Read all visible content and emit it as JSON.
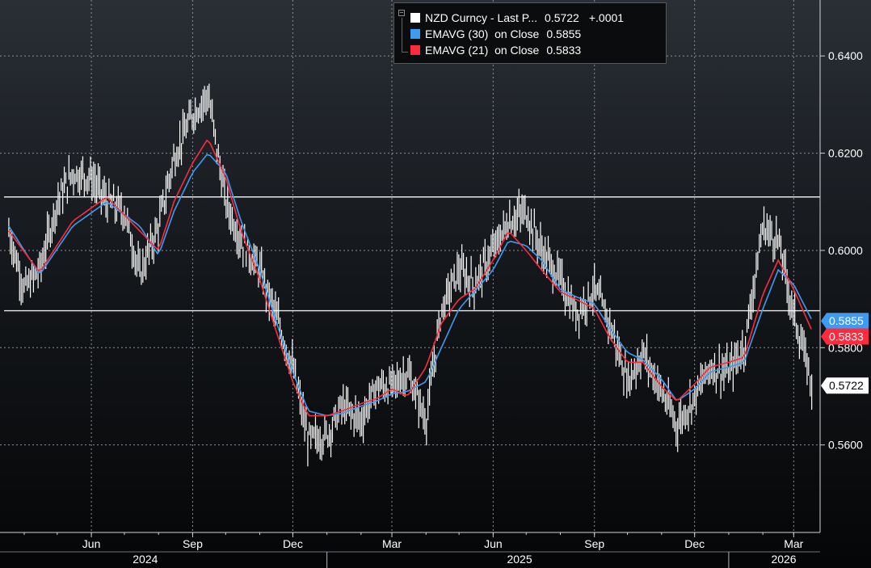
{
  "legend": {
    "rows": [
      {
        "label": "NZD Curncy - Last P...",
        "value": "0.5722",
        "change": "+.0001",
        "color": "#ffffff"
      },
      {
        "label": "EMAVG (30)  on Close",
        "value": "0.5855",
        "change": "",
        "color": "#3d9cf2"
      },
      {
        "label": "EMAVG (21)  on Close",
        "value": "0.5833",
        "change": "",
        "color": "#ff2a3c"
      }
    ]
  },
  "price_tags": [
    {
      "text": "0.5855",
      "bg": "#3d9cf2",
      "fg": "#ffffff"
    },
    {
      "text": "0.5833",
      "bg": "#ff2a3c",
      "fg": "#ffffff"
    },
    {
      "text": "0.5722",
      "bg": "#ffffff",
      "fg": "#000000"
    }
  ],
  "chart_data": {
    "type": "line",
    "title": "",
    "ylim": [
      0.542,
      0.6515
    ],
    "y_ticks": [
      "0.6400",
      "0.6200",
      "0.6000",
      "0.5800",
      "0.5600"
    ],
    "x_tick_labels": [
      "Jun",
      "Sep",
      "Dec",
      "Mar",
      "Jun",
      "Sep",
      "Dec",
      "Mar"
    ],
    "x_year_labels": [
      "2024",
      "2025",
      "2026"
    ],
    "horizontal_lines": [
      0.611,
      0.5876
    ],
    "grid": true,
    "legend_position": "top",
    "series": [
      {
        "name": "NZD Curncy - Last P...",
        "color": "#ffffff",
        "style": "bars",
        "x": [
          "2024-03-18",
          "2024-04-01",
          "2024-04-15",
          "2024-05-01",
          "2024-05-15",
          "2024-06-01",
          "2024-06-15",
          "2024-07-01",
          "2024-07-15",
          "2024-08-01",
          "2024-08-15",
          "2024-09-01",
          "2024-09-15",
          "2024-10-01",
          "2024-10-15",
          "2024-11-01",
          "2024-11-15",
          "2024-12-01",
          "2024-12-15",
          "2025-01-01",
          "2025-01-15",
          "2025-02-01",
          "2025-02-15",
          "2025-03-01",
          "2025-03-15",
          "2025-04-01",
          "2025-04-15",
          "2025-05-01",
          "2025-05-15",
          "2025-06-01",
          "2025-06-15",
          "2025-07-01",
          "2025-07-15",
          "2025-08-01",
          "2025-08-15",
          "2025-09-01",
          "2025-09-15",
          "2025-10-01",
          "2025-10-15",
          "2025-11-01",
          "2025-11-15",
          "2025-12-01",
          "2025-12-15",
          "2026-01-01",
          "2026-01-15",
          "2026-02-01",
          "2026-02-15",
          "2026-03-01",
          "2026-03-18"
        ],
        "values": [
          0.604,
          0.592,
          0.596,
          0.61,
          0.616,
          0.615,
          0.61,
          0.608,
          0.595,
          0.605,
          0.619,
          0.628,
          0.632,
          0.61,
          0.602,
          0.596,
          0.587,
          0.576,
          0.561,
          0.562,
          0.568,
          0.565,
          0.572,
          0.572,
          0.575,
          0.565,
          0.588,
          0.596,
          0.593,
          0.6,
          0.606,
          0.608,
          0.6,
          0.594,
          0.587,
          0.592,
          0.585,
          0.573,
          0.579,
          0.571,
          0.564,
          0.57,
          0.576,
          0.575,
          0.58,
          0.605,
          0.602,
          0.587,
          0.5722
        ]
      },
      {
        "name": "EMAVG (30)  on Close",
        "color": "#3d9cf2",
        "style": "line",
        "x": [
          "2024-03-18",
          "2024-04-15",
          "2024-05-15",
          "2024-06-15",
          "2024-07-15",
          "2024-08-01",
          "2024-08-15",
          "2024-09-01",
          "2024-09-15",
          "2024-10-01",
          "2024-10-15",
          "2024-11-01",
          "2024-11-15",
          "2024-12-01",
          "2024-12-15",
          "2025-01-01",
          "2025-01-15",
          "2025-02-01",
          "2025-02-15",
          "2025-03-01",
          "2025-03-15",
          "2025-04-01",
          "2025-04-15",
          "2025-05-01",
          "2025-05-15",
          "2025-06-01",
          "2025-06-15",
          "2025-07-01",
          "2025-07-15",
          "2025-08-01",
          "2025-08-15",
          "2025-09-01",
          "2025-09-15",
          "2025-10-01",
          "2025-10-15",
          "2025-11-01",
          "2025-11-15",
          "2025-12-01",
          "2025-12-15",
          "2026-01-01",
          "2026-01-15",
          "2026-02-01",
          "2026-02-15",
          "2026-03-01",
          "2026-03-18"
        ],
        "values": [
          0.605,
          0.595,
          0.605,
          0.61,
          0.605,
          0.599,
          0.608,
          0.616,
          0.62,
          0.616,
          0.606,
          0.596,
          0.586,
          0.575,
          0.567,
          0.566,
          0.5665,
          0.568,
          0.569,
          0.5705,
          0.571,
          0.573,
          0.58,
          0.588,
          0.5915,
          0.596,
          0.602,
          0.601,
          0.598,
          0.592,
          0.5905,
          0.589,
          0.584,
          0.579,
          0.5775,
          0.5735,
          0.569,
          0.5715,
          0.575,
          0.576,
          0.577,
          0.588,
          0.596,
          0.593,
          0.5855
        ]
      },
      {
        "name": "EMAVG (21)  on Close",
        "color": "#ff2a3c",
        "style": "line",
        "x": [
          "2024-03-18",
          "2024-04-15",
          "2024-05-15",
          "2024-06-15",
          "2024-07-15",
          "2024-08-01",
          "2024-08-15",
          "2024-09-01",
          "2024-09-15",
          "2024-10-01",
          "2024-10-15",
          "2024-11-01",
          "2024-11-15",
          "2024-12-01",
          "2024-12-15",
          "2025-01-01",
          "2025-01-15",
          "2025-02-01",
          "2025-02-15",
          "2025-03-01",
          "2025-03-15",
          "2025-04-01",
          "2025-04-15",
          "2025-05-01",
          "2025-05-15",
          "2025-06-01",
          "2025-06-15",
          "2025-07-01",
          "2025-07-15",
          "2025-08-01",
          "2025-08-15",
          "2025-09-01",
          "2025-09-15",
          "2025-10-01",
          "2025-10-15",
          "2025-11-01",
          "2025-11-15",
          "2025-12-01",
          "2025-12-15",
          "2026-01-01",
          "2026-01-15",
          "2026-02-01",
          "2026-02-15",
          "2026-03-01",
          "2026-03-18"
        ],
        "values": [
          0.604,
          0.5955,
          0.606,
          0.611,
          0.604,
          0.6,
          0.61,
          0.618,
          0.623,
          0.615,
          0.604,
          0.594,
          0.584,
          0.573,
          0.566,
          0.566,
          0.567,
          0.5685,
          0.5695,
          0.5715,
          0.57,
          0.576,
          0.585,
          0.59,
          0.592,
          0.598,
          0.604,
          0.6,
          0.596,
          0.5915,
          0.59,
          0.588,
          0.582,
          0.577,
          0.577,
          0.572,
          0.569,
          0.5725,
          0.576,
          0.577,
          0.578,
          0.591,
          0.598,
          0.592,
          0.5833
        ]
      }
    ]
  }
}
